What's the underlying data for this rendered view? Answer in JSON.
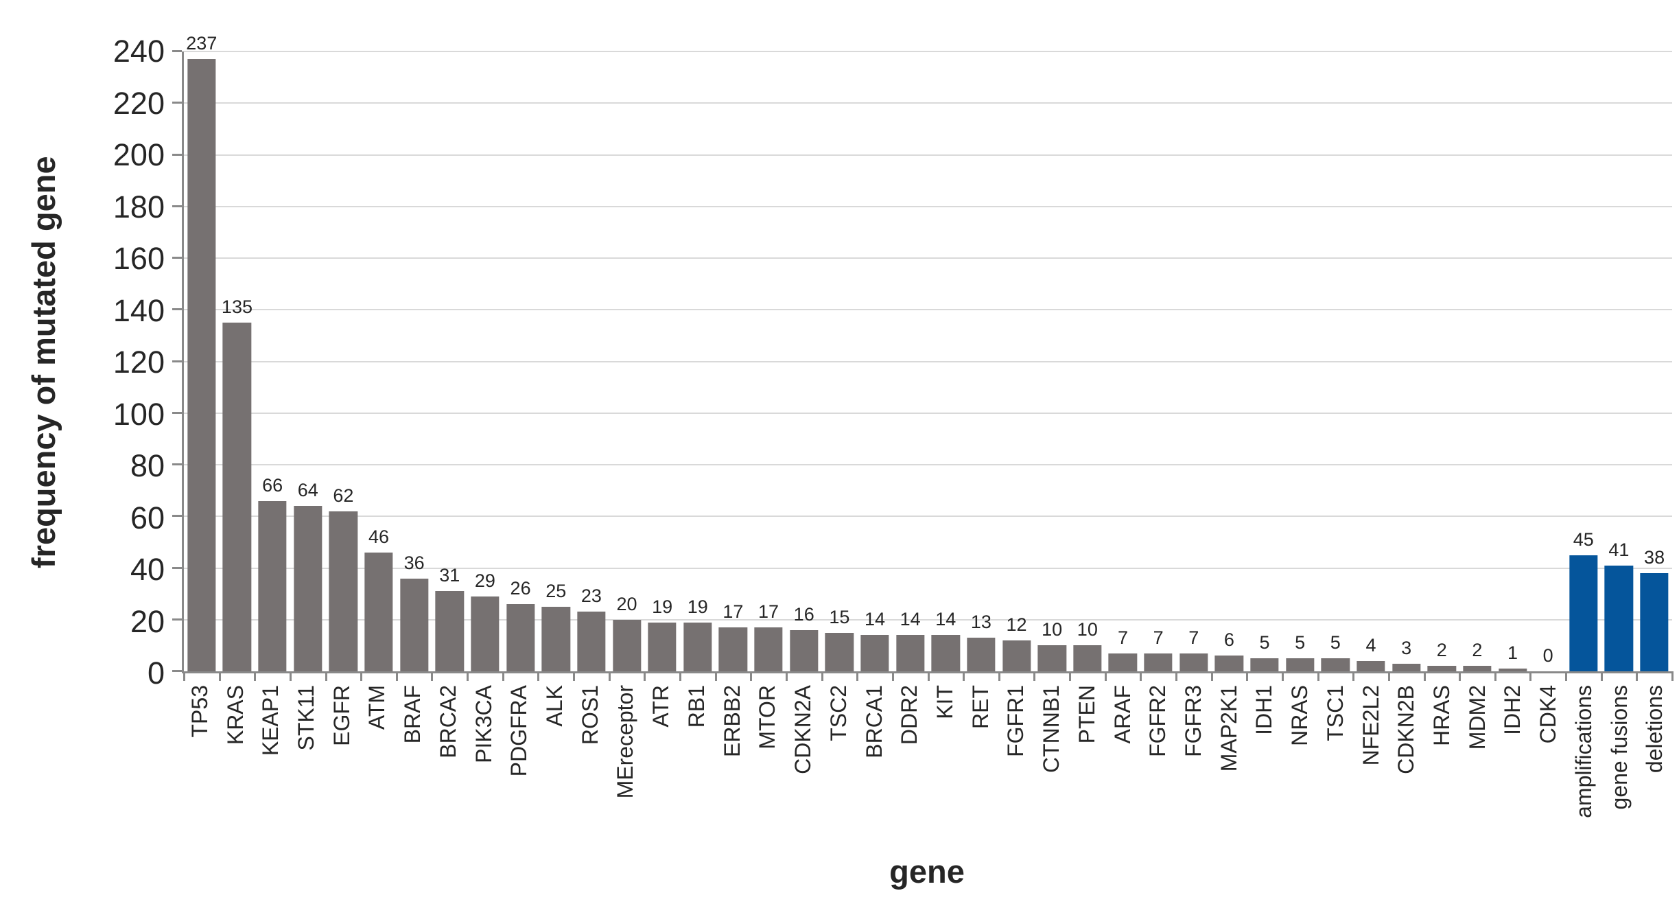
{
  "chart_data": {
    "type": "bar",
    "title": "",
    "xlabel": "gene",
    "ylabel": "frequency of mutated gene",
    "ylim": [
      0,
      240
    ],
    "ytick_interval": 20,
    "grid": true,
    "legend": false,
    "categories": [
      "TP53",
      "KRAS",
      "KEAP1",
      "STK11",
      "EGFR",
      "ATM",
      "BRAF",
      "BRCA2",
      "PIK3CA",
      "PDGFRA",
      "ALK",
      "ROS1",
      "MEreceptor",
      "ATR",
      "RB1",
      "ERBB2",
      "MTOR",
      "CDKN2A",
      "TSC2",
      "BRCA1",
      "DDR2",
      "KIT",
      "RET",
      "FGFR1",
      "CTNNB1",
      "PTEN",
      "ARAF",
      "FGFR2",
      "FGFR3",
      "MAP2K1",
      "IDH1",
      "NRAS",
      "TSC1",
      "NFE2L2",
      "CDKN2B",
      "HRAS",
      "MDM2",
      "IDH2",
      "CDK4",
      "amplifications",
      "gene fusions",
      "deletions"
    ],
    "values": [
      237,
      135,
      66,
      64,
      62,
      46,
      36,
      31,
      29,
      26,
      25,
      23,
      20,
      19,
      19,
      17,
      17,
      16,
      15,
      14,
      14,
      14,
      13,
      12,
      10,
      10,
      7,
      7,
      7,
      6,
      5,
      5,
      5,
      4,
      3,
      2,
      2,
      1,
      0,
      45,
      41,
      38
    ],
    "highlight_categories": [
      "amplifications",
      "gene fusions",
      "deletions"
    ],
    "colors": {
      "bar_default": "#767171",
      "bar_highlight": "#05559B",
      "axis_line": "#898989",
      "gridline": "#D9D9D9",
      "text": "#262626"
    }
  }
}
